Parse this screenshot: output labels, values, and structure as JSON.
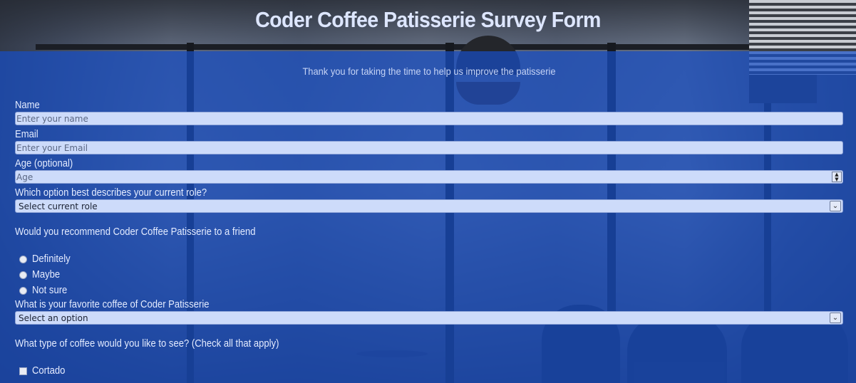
{
  "form": {
    "title": "Coder Coffee Patisserie Survey Form",
    "description": "Thank you for taking the time to help us improve the patisserie",
    "name": {
      "label": "Name",
      "placeholder": "Enter your name"
    },
    "email": {
      "label": "Email",
      "placeholder": "Enter your Email"
    },
    "age": {
      "label": "Age (optional)",
      "placeholder": "Age"
    },
    "role": {
      "label": "Which option best describes your current role?",
      "selected": "Select current role"
    },
    "recommend": {
      "label": "Would you recommend Coder Coffee Patisserie to a friend",
      "options": [
        "Definitely",
        "Maybe",
        "Not sure"
      ]
    },
    "favorite": {
      "label": "What is your favorite coffee of Coder Patisserie",
      "selected": "Select an option"
    },
    "types": {
      "label": "What type of coffee would you like to see? (Check all that apply)",
      "options": [
        "Cortado"
      ]
    }
  },
  "icons": {
    "dropdown": "chevron-down-icon",
    "spinner": "spin-arrows-icon"
  }
}
